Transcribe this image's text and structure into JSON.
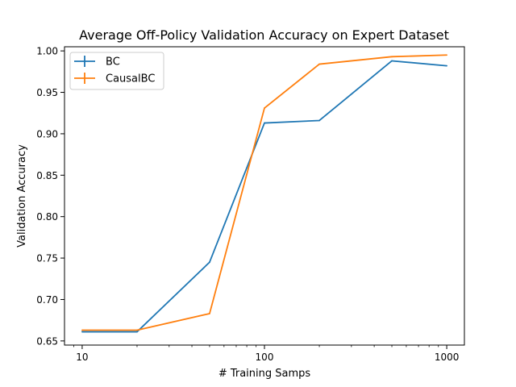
{
  "chart_data": {
    "type": "line",
    "title": "Average Off-Policy Validation Accuracy on Expert Dataset",
    "xlabel": "# Training Samps",
    "ylabel": "Validation Accuracy",
    "x_scale": "log",
    "xlim": [
      8,
      1250
    ],
    "ylim": [
      0.645,
      1.005
    ],
    "x_ticks": [
      10,
      100,
      1000
    ],
    "x_tick_labels": [
      "10",
      "100",
      "1000"
    ],
    "y_ticks": [
      0.65,
      0.7,
      0.75,
      0.8,
      0.85,
      0.9,
      0.95,
      1.0
    ],
    "y_tick_labels": [
      "0.65",
      "0.70",
      "0.75",
      "0.80",
      "0.85",
      "0.90",
      "0.95",
      "1.00"
    ],
    "grid": false,
    "legend_position": "top-left",
    "series": [
      {
        "name": "BC",
        "color": "#1f77b4",
        "x": [
          10,
          20,
          50,
          100,
          200,
          500,
          1000
        ],
        "values": [
          0.661,
          0.661,
          0.745,
          0.913,
          0.916,
          0.988,
          0.982
        ]
      },
      {
        "name": "CausalBC",
        "color": "#ff7f0e",
        "x": [
          10,
          20,
          50,
          100,
          200,
          500,
          1000
        ],
        "values": [
          0.663,
          0.663,
          0.683,
          0.931,
          0.984,
          0.993,
          0.995
        ]
      }
    ]
  }
}
